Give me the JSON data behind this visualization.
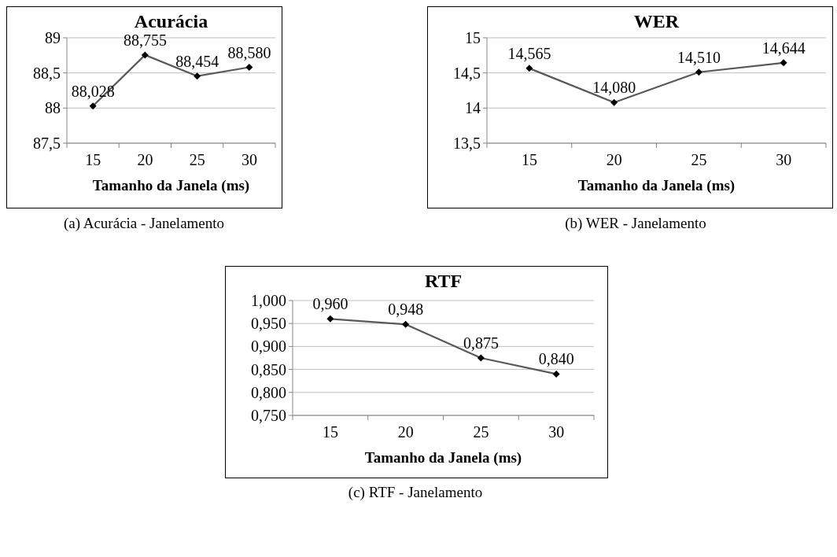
{
  "chart_data": [
    {
      "type": "line",
      "title": "Acurácia",
      "xlabel": "Tamanho da Janela (ms)",
      "categories": [
        "15",
        "20",
        "25",
        "30"
      ],
      "series": [
        {
          "color": "#595959",
          "values": [
            88.028,
            88.755,
            88.454,
            88.58
          ],
          "value_labels": [
            "88,028",
            "88,755",
            "88,454",
            "88,580"
          ]
        }
      ],
      "ylim": [
        87.5,
        89
      ],
      "yticks": [
        {
          "value": 87.5,
          "label": "87,5"
        },
        88,
        {
          "value": 88.5,
          "label": "88,5"
        },
        89
      ],
      "grid": "y",
      "marker": "diamond",
      "line_style": "solid",
      "annotations": [
        "(a) Acurácia - Janelamento"
      ]
    },
    {
      "type": "line",
      "title": "WER",
      "xlabel": "Tamanho da Janela (ms)",
      "categories": [
        "15",
        "20",
        "25",
        "30"
      ],
      "series": [
        {
          "color": "#595959",
          "values": [
            14.565,
            14.08,
            14.51,
            14.644
          ],
          "value_labels": [
            "14,565",
            "14,080",
            "14,510",
            "14,644"
          ]
        }
      ],
      "ylim": [
        13.5,
        15
      ],
      "yticks": [
        {
          "value": 13.5,
          "label": "13,5"
        },
        14,
        {
          "value": 14.5,
          "label": "14,5"
        },
        15
      ],
      "grid": "y",
      "marker": "diamond",
      "line_style": "solid",
      "annotations": [
        "(b) WER - Janelamento"
      ]
    },
    {
      "type": "line",
      "title": "RTF",
      "xlabel": "Tamanho da Janela (ms)",
      "categories": [
        "15",
        "20",
        "25",
        "30"
      ],
      "series": [
        {
          "color": "#595959",
          "values": [
            0.96,
            0.948,
            0.875,
            0.84
          ],
          "value_labels": [
            "0,960",
            "0,948",
            "0,875",
            "0,840"
          ]
        }
      ],
      "ylim": [
        0.75,
        1
      ],
      "yticks": [
        {
          "value": 0.75,
          "label": "0,750"
        },
        {
          "value": 0.8,
          "label": "0,800"
        },
        {
          "value": 0.85,
          "label": "0,850"
        },
        {
          "value": 0.9,
          "label": "0,900"
        },
        {
          "value": 0.95,
          "label": "0,950"
        },
        {
          "value": 1,
          "label": "1,000"
        }
      ],
      "grid": "y",
      "marker": "diamond",
      "line_style": "solid",
      "annotations": [
        "(c) RTF - Janelamento"
      ]
    }
  ]
}
